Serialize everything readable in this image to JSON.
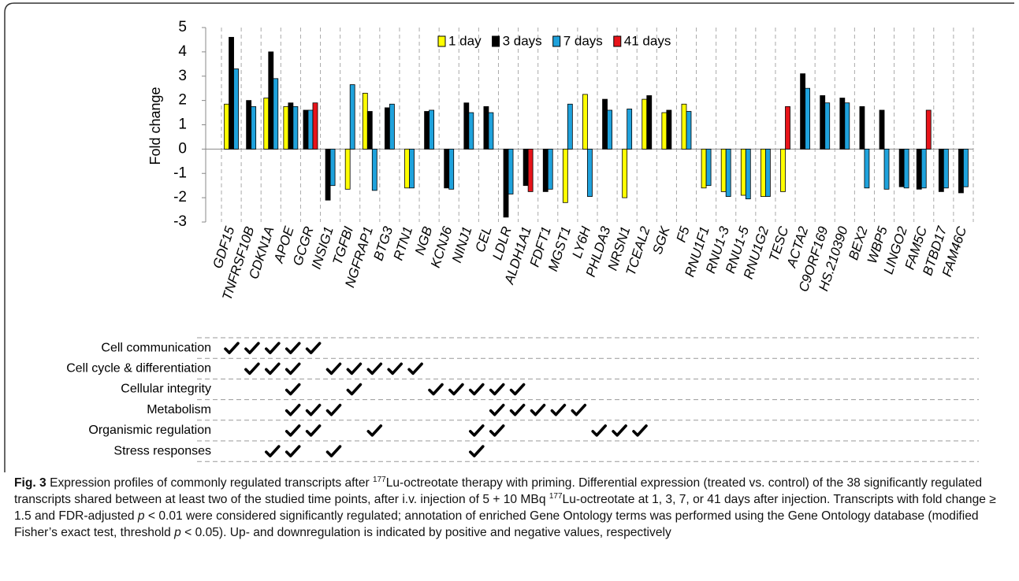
{
  "chart_data": {
    "type": "bar",
    "y_label": "Fold change",
    "categories": [
      "GDF15",
      "TNFRSF10B",
      "CDKN1A",
      "APOE",
      "GCGR",
      "INSIG1",
      "TGFBI",
      "NGFRAP1",
      "BTG3",
      "RTN1",
      "NGB",
      "KCNJ6",
      "NINJ1",
      "CEL",
      "LDLR",
      "ALDH1A1",
      "FDFT1",
      "MGST1",
      "LY6H",
      "PHLDA3",
      "NRSN1",
      "TCEAL2",
      "SGK",
      "F5",
      "RNU1F1",
      "RNU1-3",
      "RNU1-5",
      "RNU1G2",
      "TESC",
      "ACTA2",
      "C9ORF169",
      "HS.210390",
      "BEX2",
      "WBP5",
      "LINGO2",
      "FAM5C",
      "BTBD17",
      "FAM46C"
    ],
    "series": [
      {
        "name": "1 day",
        "color": "#ffff00",
        "values": [
          1.85,
          null,
          2.1,
          1.75,
          null,
          null,
          -1.65,
          2.3,
          null,
          -1.6,
          null,
          null,
          null,
          null,
          null,
          null,
          null,
          -2.2,
          2.25,
          null,
          -2.0,
          2.05,
          1.5,
          1.85,
          -1.6,
          -1.75,
          -1.9,
          -1.95,
          -1.75,
          null,
          null,
          null,
          null,
          null,
          null,
          null,
          null,
          null
        ]
      },
      {
        "name": "3 days",
        "color": "#000000",
        "values": [
          4.6,
          2.0,
          4.0,
          1.9,
          1.6,
          -2.1,
          null,
          1.55,
          1.7,
          null,
          1.55,
          -1.6,
          1.9,
          1.75,
          -2.8,
          -1.5,
          -1.75,
          null,
          null,
          2.05,
          null,
          2.2,
          1.6,
          null,
          null,
          null,
          null,
          null,
          null,
          3.1,
          2.2,
          2.1,
          1.75,
          1.6,
          -1.55,
          -1.65,
          -1.75,
          -1.8
        ]
      },
      {
        "name": "7 days",
        "color": "#1fa2dc",
        "values": [
          3.3,
          1.75,
          2.9,
          1.75,
          1.6,
          -1.5,
          2.65,
          -1.7,
          1.85,
          -1.6,
          1.6,
          -1.65,
          1.5,
          1.5,
          -1.85,
          null,
          -1.65,
          1.85,
          -1.95,
          1.6,
          1.65,
          null,
          null,
          1.55,
          -1.5,
          -1.95,
          -2.05,
          -1.95,
          null,
          2.5,
          1.9,
          1.9,
          -1.6,
          -1.65,
          -1.6,
          -1.6,
          -1.6,
          -1.55
        ]
      },
      {
        "name": "41 days",
        "color": "#e8141a",
        "values": [
          null,
          null,
          null,
          null,
          1.9,
          null,
          null,
          null,
          null,
          null,
          null,
          null,
          null,
          null,
          null,
          -1.75,
          null,
          null,
          null,
          null,
          null,
          null,
          null,
          null,
          null,
          null,
          null,
          null,
          1.75,
          null,
          null,
          null,
          null,
          null,
          null,
          1.6,
          null,
          null
        ]
      }
    ],
    "ylim": [
      -3,
      5
    ],
    "yticks": [
      -3,
      -2,
      -1,
      0,
      1,
      2,
      3,
      4,
      5
    ],
    "grid": false,
    "legend": "top"
  },
  "go_annotation": {
    "rows": [
      {
        "term": "Cell communication",
        "genes": [
          "GDF15",
          "TNFRSF10B",
          "CDKN1A",
          "APOE",
          "GCGR"
        ]
      },
      {
        "term": "Cell cycle & differentiation",
        "genes": [
          "TNFRSF10B",
          "CDKN1A",
          "APOE",
          "INSIG1",
          "TGFBI",
          "NGFRAP1",
          "BTG3",
          "RTN1"
        ]
      },
      {
        "term": "Cellular integrity",
        "genes": [
          "APOE",
          "TGFBI",
          "NGB",
          "KCNJ6",
          "NINJ1",
          "CEL",
          "LDLR"
        ]
      },
      {
        "term": "Metabolism",
        "genes": [
          "APOE",
          "GCGR",
          "INSIG1",
          "CEL",
          "LDLR",
          "ALDH1A1",
          "FDFT1",
          "MGST1"
        ]
      },
      {
        "term": "Organismic regulation",
        "genes": [
          "APOE",
          "GCGR",
          "NGFRAP1",
          "NINJ1",
          "CEL",
          "LY6H",
          "PHLDA3",
          "NRSN1"
        ]
      },
      {
        "term": "Stress responses",
        "genes": [
          "CDKN1A",
          "APOE",
          "INSIG1",
          "NINJ1"
        ]
      }
    ]
  },
  "caption": {
    "parts": [
      "Fig. 3",
      " Expression profiles of commonly regulated transcripts after ",
      "177",
      "Lu-octreotate therapy with priming. Differential expression (treated vs. control) of the 38 significantly regulated transcripts shared between at least two of the studied time points, after i.v. injection of 5 + 10 MBq ",
      "177",
      "Lu-octreotate at 1, 3, 7, or 41 days after injection. Transcripts with fold change ≥ 1.5 and FDR-adjusted ",
      "p",
      " < 0.01 were considered significantly regulated; annotation of enriched Gene Ontology terms was performed using the Gene Ontology database (modified Fisher’s exact test, threshold ",
      "p",
      " < 0.05). Up- and downregulation is indicated by positive and negative values, respectively"
    ]
  }
}
